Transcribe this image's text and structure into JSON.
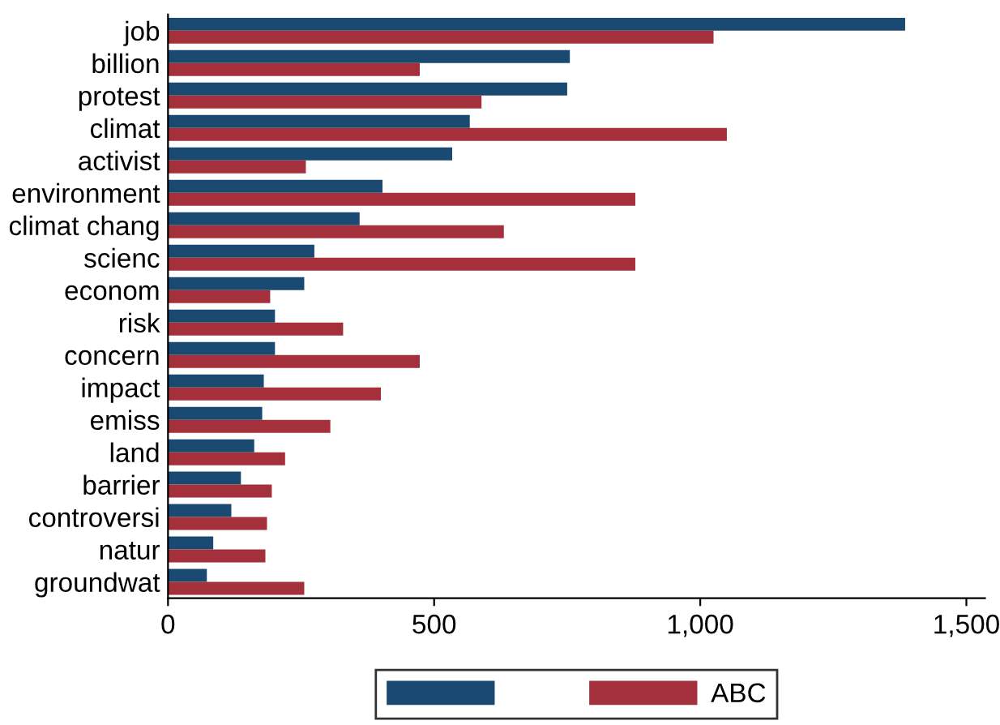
{
  "chart_data": {
    "type": "bar",
    "orientation": "horizontal",
    "categories": [
      "job",
      "billion",
      "protest",
      "climat",
      "activist",
      "environment",
      "climat chang",
      "scienc",
      "econom",
      "risk",
      "concern",
      "impact",
      "emiss",
      "land",
      "barrier",
      "controversi",
      "natur",
      "groundwat"
    ],
    "series": [
      {
        "color": "#1a4a72",
        "values": [
          1385,
          755,
          750,
          567,
          534,
          403,
          360,
          275,
          256,
          201,
          201,
          180,
          177,
          162,
          137,
          119,
          85,
          73
        ]
      },
      {
        "name": "ABC",
        "color": "#a3303a",
        "values": [
          1025,
          473,
          589,
          1050,
          259,
          878,
          631,
          878,
          192,
          329,
          473,
          400,
          305,
          220,
          195,
          186,
          183,
          256
        ]
      }
    ],
    "xlim": [
      0,
      1535
    ],
    "xticks": [
      0,
      500,
      {
        "value": 1000,
        "label": "1,000"
      },
      {
        "value": 1500,
        "label": "1,500"
      }
    ],
    "grid": false,
    "legend": "bottom"
  }
}
